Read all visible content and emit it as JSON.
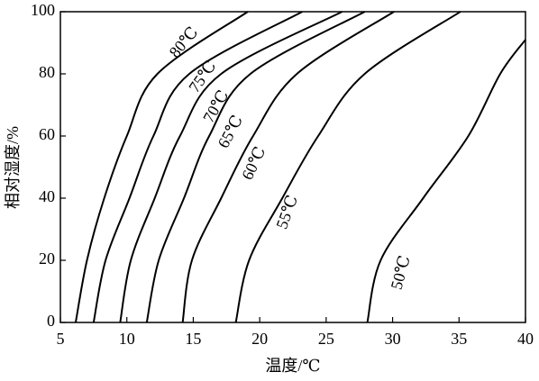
{
  "chart_data": {
    "type": "line",
    "xlabel": "温度/℃",
    "ylabel": "相对湿度/%",
    "xlim": [
      5,
      40
    ],
    "ylim": [
      0,
      100
    ],
    "xticks": [
      5,
      10,
      15,
      20,
      25,
      30,
      35,
      40
    ],
    "yticks": [
      0,
      20,
      40,
      60,
      80,
      100
    ],
    "color": "#000000",
    "series": [
      {
        "name": "80℃",
        "x": [
          6.15,
          7.0,
          8.3,
          10.0,
          12.3,
          19.1
        ],
        "values": [
          0,
          20,
          40,
          60,
          80,
          100
        ]
      },
      {
        "name": "75℃",
        "x": [
          7.5,
          8.4,
          10.2,
          12.0,
          14.7,
          23.2
        ],
        "values": [
          0,
          20,
          40,
          60,
          80,
          100
        ]
      },
      {
        "name": "70℃",
        "x": [
          9.5,
          10.3,
          12.1,
          14.0,
          17.1,
          26.2
        ],
        "values": [
          0,
          20,
          40,
          60,
          80,
          100
        ]
      },
      {
        "name": "65℃",
        "x": [
          11.5,
          12.4,
          14.3,
          16.2,
          19.3,
          27.9
        ],
        "values": [
          0,
          20,
          40,
          60,
          80,
          100
        ]
      },
      {
        "name": "60℃",
        "x": [
          14.2,
          14.9,
          17.1,
          19.5,
          22.8,
          30.1
        ],
        "values": [
          0,
          20,
          40,
          60,
          80,
          100
        ]
      },
      {
        "name": "55℃",
        "x": [
          18.2,
          19.2,
          21.7,
          24.4,
          27.9,
          35.1
        ],
        "values": [
          0,
          20,
          40,
          60,
          80,
          100
        ]
      },
      {
        "name": "50℃",
        "x": [
          28.1,
          29.1,
          32.3,
          35.7,
          38.1,
          40
        ],
        "values": [
          0,
          20,
          40,
          60,
          80,
          91
        ]
      }
    ]
  }
}
